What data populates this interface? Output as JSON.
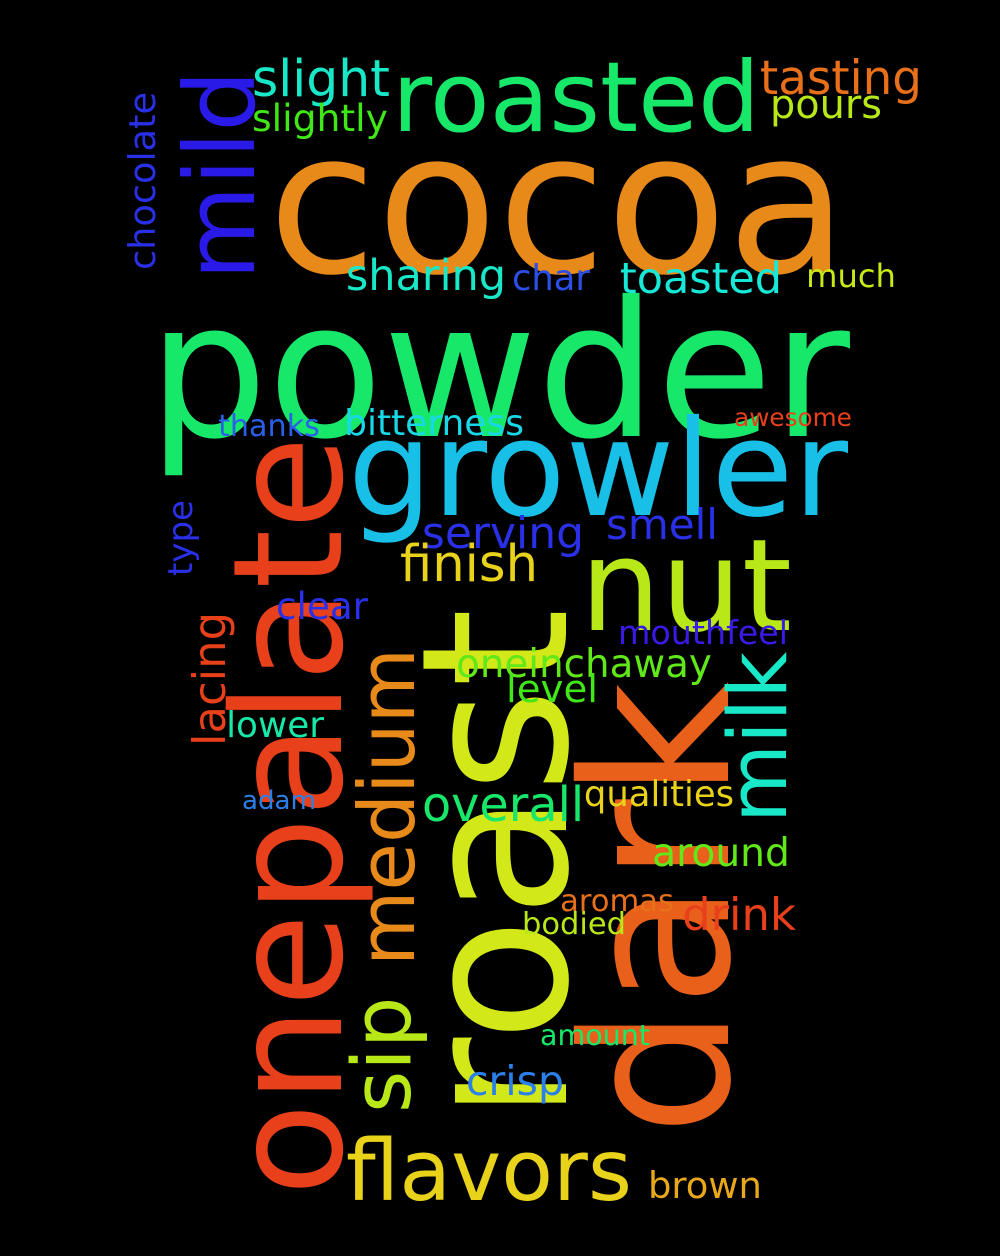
{
  "background": "#000000",
  "words": [
    {
      "text": "cocoa",
      "color": "#E88A1A"
    },
    {
      "text": "powder",
      "color": "#18E86A"
    },
    {
      "text": "roasted",
      "color": "#18E86A"
    },
    {
      "text": "growler",
      "color": "#18C0E8"
    },
    {
      "text": "nut",
      "color": "#B8E818"
    },
    {
      "text": "roast",
      "color": "#D2E818"
    },
    {
      "text": "dark",
      "color": "#E8601A"
    },
    {
      "text": "onepalate",
      "color": "#E8401A"
    },
    {
      "text": "mild",
      "color": "#2A1AE8"
    },
    {
      "text": "medium",
      "color": "#E88A1A"
    },
    {
      "text": "milk",
      "color": "#18E8C8"
    },
    {
      "text": "flavors",
      "color": "#E8D21A"
    },
    {
      "text": "sip",
      "color": "#B8E818"
    },
    {
      "text": "tasting",
      "color": "#E8701A"
    },
    {
      "text": "pours",
      "color": "#B8E818"
    },
    {
      "text": "slight",
      "color": "#18E8C8"
    },
    {
      "text": "slightly",
      "color": "#40E818"
    },
    {
      "text": "chocolate",
      "color": "#2A30E8"
    },
    {
      "text": "sharing",
      "color": "#18E8C8"
    },
    {
      "text": "char",
      "color": "#2A50E8"
    },
    {
      "text": "toasted",
      "color": "#18E8D8"
    },
    {
      "text": "much",
      "color": "#C8E818"
    },
    {
      "text": "thanks",
      "color": "#2A60E8"
    },
    {
      "text": "bitterness",
      "color": "#18D8E8"
    },
    {
      "text": "awesome",
      "color": "#E8401A"
    },
    {
      "text": "type",
      "color": "#2A30E8"
    },
    {
      "text": "serving",
      "color": "#2A30E8"
    },
    {
      "text": "smell",
      "color": "#2A30E8"
    },
    {
      "text": "finish",
      "color": "#E8D21A"
    },
    {
      "text": "clear",
      "color": "#2A30E8"
    },
    {
      "text": "mouthfeel",
      "color": "#3A1AE8"
    },
    {
      "text": "lacing",
      "color": "#E8401A"
    },
    {
      "text": "oneinchaway",
      "color": "#60E818"
    },
    {
      "text": "level",
      "color": "#40E818"
    },
    {
      "text": "lower",
      "color": "#18E8A8"
    },
    {
      "text": "adam",
      "color": "#2A80E8"
    },
    {
      "text": "overall",
      "color": "#18E86A"
    },
    {
      "text": "qualities",
      "color": "#E8D21A"
    },
    {
      "text": "around",
      "color": "#60E818"
    },
    {
      "text": "aromas",
      "color": "#E8701A"
    },
    {
      "text": "drink",
      "color": "#E8401A"
    },
    {
      "text": "bodied",
      "color": "#B8E818"
    },
    {
      "text": "amount",
      "color": "#18E86A"
    },
    {
      "text": "crisp",
      "color": "#2A80E8"
    },
    {
      "text": "brown",
      "color": "#E8A81A"
    }
  ]
}
